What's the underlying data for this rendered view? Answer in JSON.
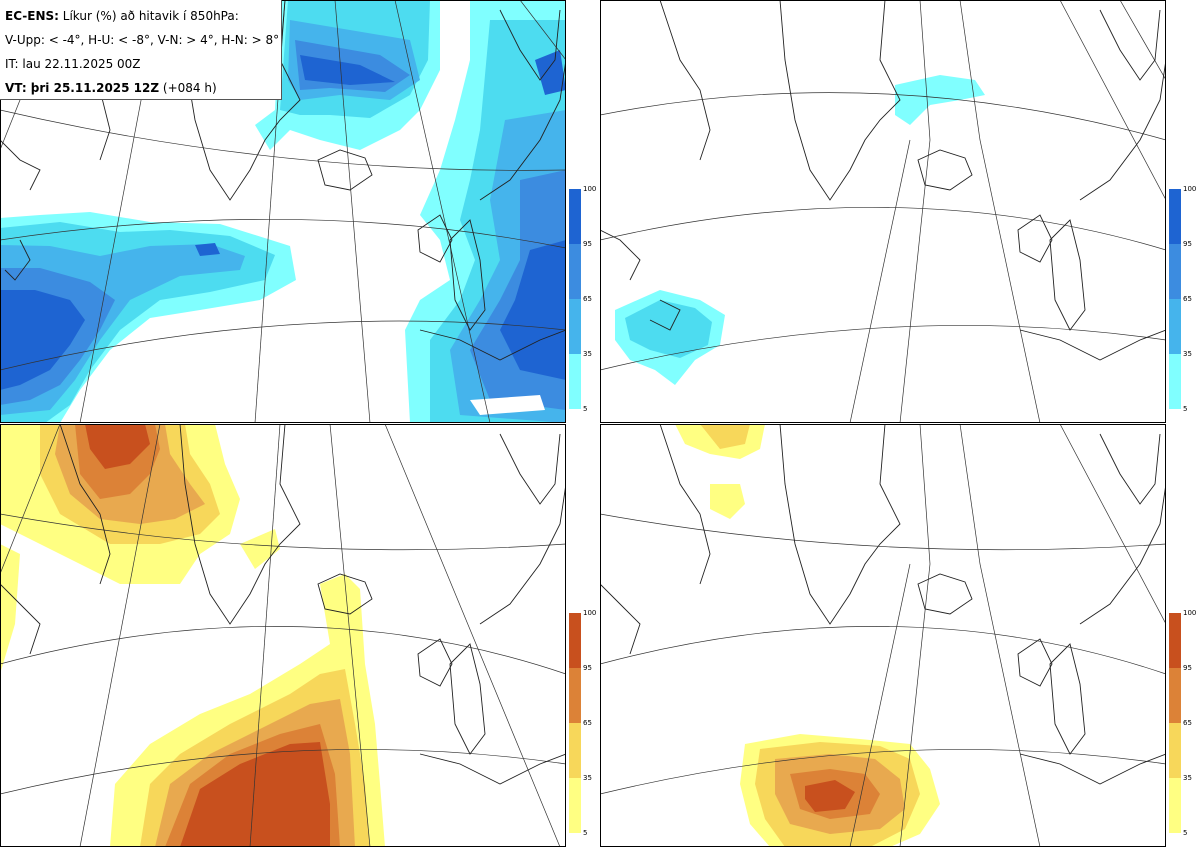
{
  "header": {
    "model": "EC-ENS:",
    "title": "Líkur (%) að hitavik í 850hPa:",
    "thresholds": "V-Upp: < -4°, H-U: < -8°, V-N: > 4°, H-N: > 8°",
    "init_time": "IT: lau 22.11.2025 00Z",
    "valid_label": "VT: þri 25.11.2025 12Z",
    "lead": "(+084 h)"
  },
  "legend_ticks": [
    "100",
    "95",
    "65",
    "35",
    "5"
  ],
  "colors": {
    "cold": [
      "#80ffff",
      "#4ddcf0",
      "#45b4ec",
      "#3c8ce0",
      "#1e64d2"
    ],
    "warm": [
      "#ffff82",
      "#f7d75a",
      "#e8a94f",
      "#dc8237",
      "#c8501e"
    ]
  },
  "panels": [
    {
      "id": "V-Upp",
      "scheme": "cold"
    },
    {
      "id": "H-U",
      "scheme": "cold"
    },
    {
      "id": "V-N",
      "scheme": "warm"
    },
    {
      "id": "H-N",
      "scheme": "warm"
    }
  ]
}
